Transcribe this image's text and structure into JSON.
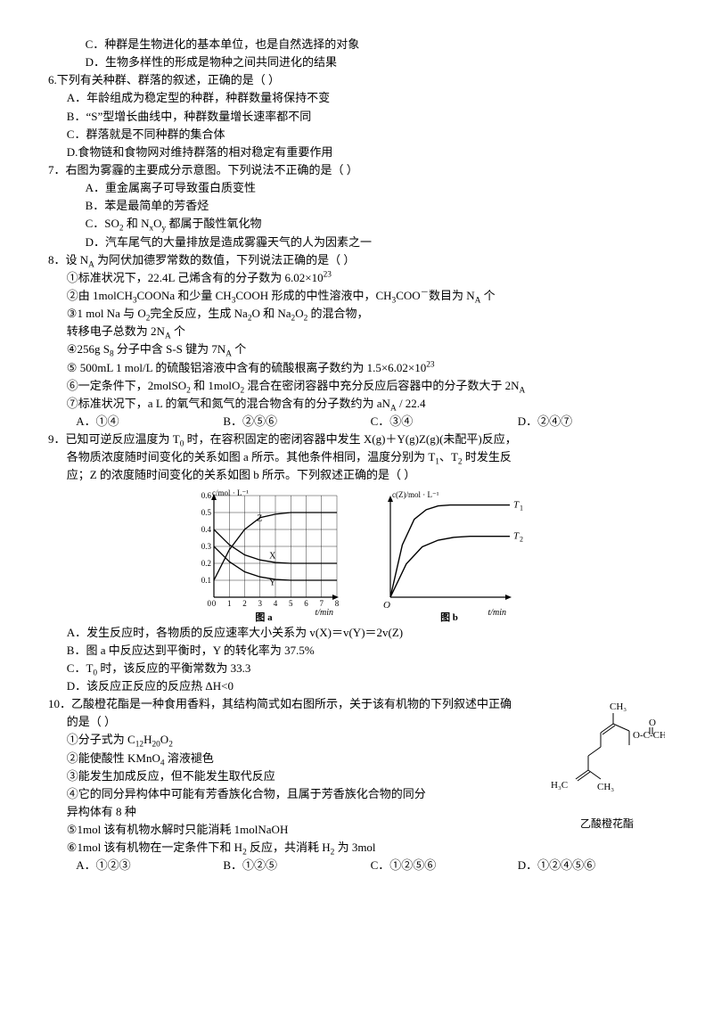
{
  "colors": {
    "text": "#000000",
    "bg": "#ffffff",
    "axis": "#000000",
    "grid": "#000000",
    "curve": "#000000"
  },
  "q5": {
    "optC": "C．种群是生物进化的基本单位，也是自然选择的对象",
    "optD": "D．生物多样性的形成是物种之间共同进化的结果"
  },
  "q6": {
    "stem": "6.下列有关种群、群落的叙述，正确的是（    ）",
    "optA": "A．年龄组成为稳定型的种群，种群数量将保持不变",
    "optB": "B．“S”型增长曲线中，种群数量增长速率都不同",
    "optC": "C．群落就是不同种群的集合体",
    "optD": "D.食物链和食物网对维持群落的相对稳定有重要作用"
  },
  "q7": {
    "stem": "7．右图为雾霾的主要成分示意图。下列说法不正确的是（    ）",
    "optA": "A．重金属离子可导致蛋白质变性",
    "optB": "B．苯是最简单的芳香烃",
    "optC_pre": "C．SO",
    "optC_mid": " 和 N",
    "optC_mid2": "O",
    "optC_post": " 都属于酸性氧化物",
    "optD": "D．汽车尾气的大量排放是造成雾霾天气的人为因素之一"
  },
  "q8": {
    "stem_pre": "8．设 N",
    "stem_post": " 为阿伏加德罗常数的数值，下列说法正确的是（    ）",
    "l1_pre": "①标准状况下，22.4L 己烯含有的分子数为 6.02×10",
    "l2_pre": "②由 1molCH",
    "l2_mid1": "COONa 和少量 CH",
    "l2_mid2": "COOH 形成的中性溶液中，CH",
    "l2_mid3": "COO",
    "l2_post": "数目为 N",
    "l2_end": " 个",
    "l3_pre": "③1 mol Na 与 O",
    "l3_mid": "完全反应，生成 Na",
    "l3_mid2": "O 和 Na",
    "l3_mid3": "O",
    "l3_post": " 的混合物，",
    "l3b_pre": "转移电子总数为 2N",
    "l3b_post": " 个",
    "l4_pre": "④256g S",
    "l4_mid": " 分子中含 S-S 键为 7N",
    "l4_post": " 个",
    "l5_pre": "⑤ 500mL 1 mol/L 的硫酸铝溶液中含有的硫酸根离子数约为 1.5×6.02×10",
    "l6_pre": "⑥一定条件下，2molSO",
    "l6_mid": " 和 1molO",
    "l6_mid2": " 混合在密闭容器中充分反应后容器中的分子数大于 2N",
    "l7_pre": "⑦标准状况下，a L 的氧气和氮气的混合物含有的分子数约为 aN",
    "l7_post": " / 22.4",
    "optA": "A．①④",
    "optB": "B．②⑤⑥",
    "optC": "C．③④",
    "optD": "D．②④⑦"
  },
  "q9": {
    "stem_l1_pre": "9．已知可逆反应温度为 T",
    "stem_l1_post": " 时，在容积固定的密闭容器中发生 X(g)＋Y(g)Z(g)(未配平)反应，",
    "stem_l2_pre": "各物质浓度随时间变化的关系如图 a 所示。其他条件相同，温度分别为 T",
    "stem_l2_mid": "、T",
    "stem_l2_post": " 时发生反",
    "stem_l3": "应；Z 的浓度随时间变化的关系如图 b 所示。下列叙述正确的是（    ）",
    "optA": "A．发生反应时，各物质的反应速率大小关系为 v(X)＝v(Y)＝2v(Z)",
    "optB": "B．图 a 中反应达到平衡时，Y 的转化率为 37.5%",
    "optC_pre": "C．T",
    "optC_post": " 时，该反应的平衡常数为 33.3",
    "optD": "D．该反应正反应的反应热 ΔH<0",
    "chart_a": {
      "type": "line",
      "xlabel": "t/min",
      "ylabel": "c/mol · L⁻¹",
      "caption": "图 a",
      "xlim": [
        0,
        8
      ],
      "ylim": [
        0,
        0.6
      ],
      "xticks": [
        0,
        1,
        2,
        3,
        4,
        5,
        6,
        7,
        8
      ],
      "yticks": [
        0,
        0.1,
        0.2,
        0.3,
        0.4,
        0.5,
        0.6
      ],
      "grid": true,
      "grid_color": "#000000",
      "bg": "#ffffff",
      "series": [
        {
          "label": "Z",
          "color": "#000000",
          "points": [
            [
              0,
              0.1
            ],
            [
              1,
              0.28
            ],
            [
              2,
              0.4
            ],
            [
              3,
              0.47
            ],
            [
              4,
              0.49
            ],
            [
              5,
              0.5
            ],
            [
              6,
              0.5
            ],
            [
              7,
              0.5
            ],
            [
              8,
              0.5
            ]
          ]
        },
        {
          "label": "X",
          "color": "#000000",
          "points": [
            [
              0,
              0.4
            ],
            [
              1,
              0.31
            ],
            [
              2,
              0.25
            ],
            [
              3,
              0.22
            ],
            [
              4,
              0.205
            ],
            [
              5,
              0.2
            ],
            [
              6,
              0.2
            ],
            [
              7,
              0.2
            ],
            [
              8,
              0.2
            ]
          ]
        },
        {
          "label": "Y",
          "color": "#000000",
          "points": [
            [
              0,
              0.3
            ],
            [
              1,
              0.21
            ],
            [
              2,
              0.15
            ],
            [
              3,
              0.12
            ],
            [
              4,
              0.105
            ],
            [
              5,
              0.1
            ],
            [
              6,
              0.1
            ],
            [
              7,
              0.1
            ],
            [
              8,
              0.1
            ]
          ]
        }
      ]
    },
    "chart_b": {
      "type": "line",
      "xlabel": "t/min",
      "ylabel": "c(Z)/mol · L⁻¹",
      "caption": "图 b",
      "bg": "#ffffff",
      "series": [
        {
          "label": "T₁",
          "color": "#000000",
          "points": [
            [
              0,
              0
            ],
            [
              0.6,
              0.55
            ],
            [
              1.2,
              0.82
            ],
            [
              1.8,
              0.92
            ],
            [
              2.4,
              0.96
            ],
            [
              3.0,
              0.97
            ],
            [
              4.5,
              0.97
            ],
            [
              6,
              0.97
            ]
          ]
        },
        {
          "label": "T₂",
          "color": "#000000",
          "points": [
            [
              0,
              0
            ],
            [
              0.8,
              0.35
            ],
            [
              1.6,
              0.53
            ],
            [
              2.4,
              0.6
            ],
            [
              3.2,
              0.63
            ],
            [
              4.0,
              0.64
            ],
            [
              5.0,
              0.64
            ],
            [
              6,
              0.64
            ]
          ]
        }
      ]
    }
  },
  "q10": {
    "stem_l1": "10．乙酸橙花酯是一种食用香料，其结构简式如右图所示，关于该有机物的下列叙述中正确",
    "stem_l2": "的是（    ）",
    "l1_pre": "①分子式为 C",
    "l1_mid": "H",
    "l1_mid2": "O",
    "l2_pre": "②能使酸性 KMnO",
    "l2_post": " 溶液褪色",
    "l3": "③能发生加成反应，但不能发生取代反应",
    "l4": "④它的同分异构体中可能有芳香族化合物，且属于芳香族化合物的同分",
    "l4b": "异构体有 8 种",
    "l5": "⑤1mol 该有机物水解时只能消耗 1molNaOH",
    "l6_pre": "⑥1mol 该有机物在一定条件下和 H",
    "l6_mid": " 反应，共消耗 H",
    "l6_post": " 为 3mol",
    "optA": "A．①②③",
    "optB": "B．①②⑤",
    "optC": "C．①②⑤⑥",
    "optD": "D．①②④⑤⑥",
    "struct_caption": "乙酸橙花酯",
    "struct_labels": {
      "ch3_top": "CH₃",
      "ch3_bot": "CH₃",
      "h3c": "H₃C",
      "ester": "O-C-CH₃",
      "dbl_o": "O"
    }
  }
}
